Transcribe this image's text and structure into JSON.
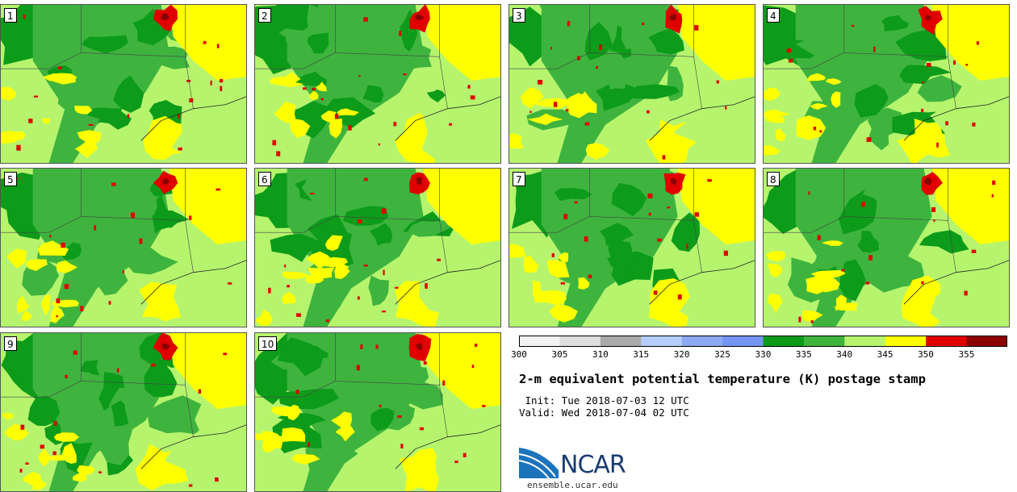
{
  "panels": [
    {
      "label": "1"
    },
    {
      "label": "2"
    },
    {
      "label": "3"
    },
    {
      "label": "4"
    },
    {
      "label": "5"
    },
    {
      "label": "6"
    },
    {
      "label": "7"
    },
    {
      "label": "8"
    },
    {
      "label": "9"
    },
    {
      "label": "10"
    }
  ],
  "colorbar": {
    "ticks": [
      "300",
      "305",
      "310",
      "315",
      "320",
      "325",
      "330",
      "335",
      "340",
      "345",
      "350",
      "355"
    ],
    "colors": [
      "#f2f2f2",
      "#dedede",
      "#aaaaaa",
      "#b4cdfa",
      "#8ca8f0",
      "#7496f2",
      "#0d9b1a",
      "#3eb43e",
      "#b6f46e",
      "#ffff00",
      "#e00000",
      "#8b0000"
    ]
  },
  "title": "2-m equivalent potential temperature (K) postage stamp",
  "init": " Init: Tue 2018-07-03 12 UTC",
  "valid": "Valid: Wed 2018-07-04 02 UTC",
  "logo": {
    "name": "NCAR",
    "url": "ensemble.ucar.edu"
  }
}
